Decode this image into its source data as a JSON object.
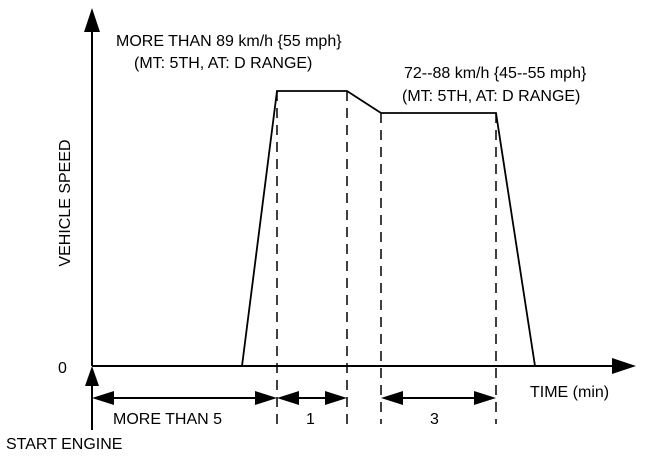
{
  "upper_label": {
    "line1": "MORE THAN 89 km/h {55 mph}",
    "line2": "(MT: 5TH, AT: D RANGE)"
  },
  "lower_label": {
    "line1": "72--88 km/h {45--55 mph}",
    "line2": "(MT: 5TH, AT: D RANGE)"
  },
  "axes": {
    "y_label": "VEHICLE SPEED",
    "x_label": "TIME (min)",
    "origin": "0"
  },
  "intervals": {
    "first": "MORE THAN 5",
    "second": "1",
    "third": "3"
  },
  "start_label": "START ENGINE"
}
